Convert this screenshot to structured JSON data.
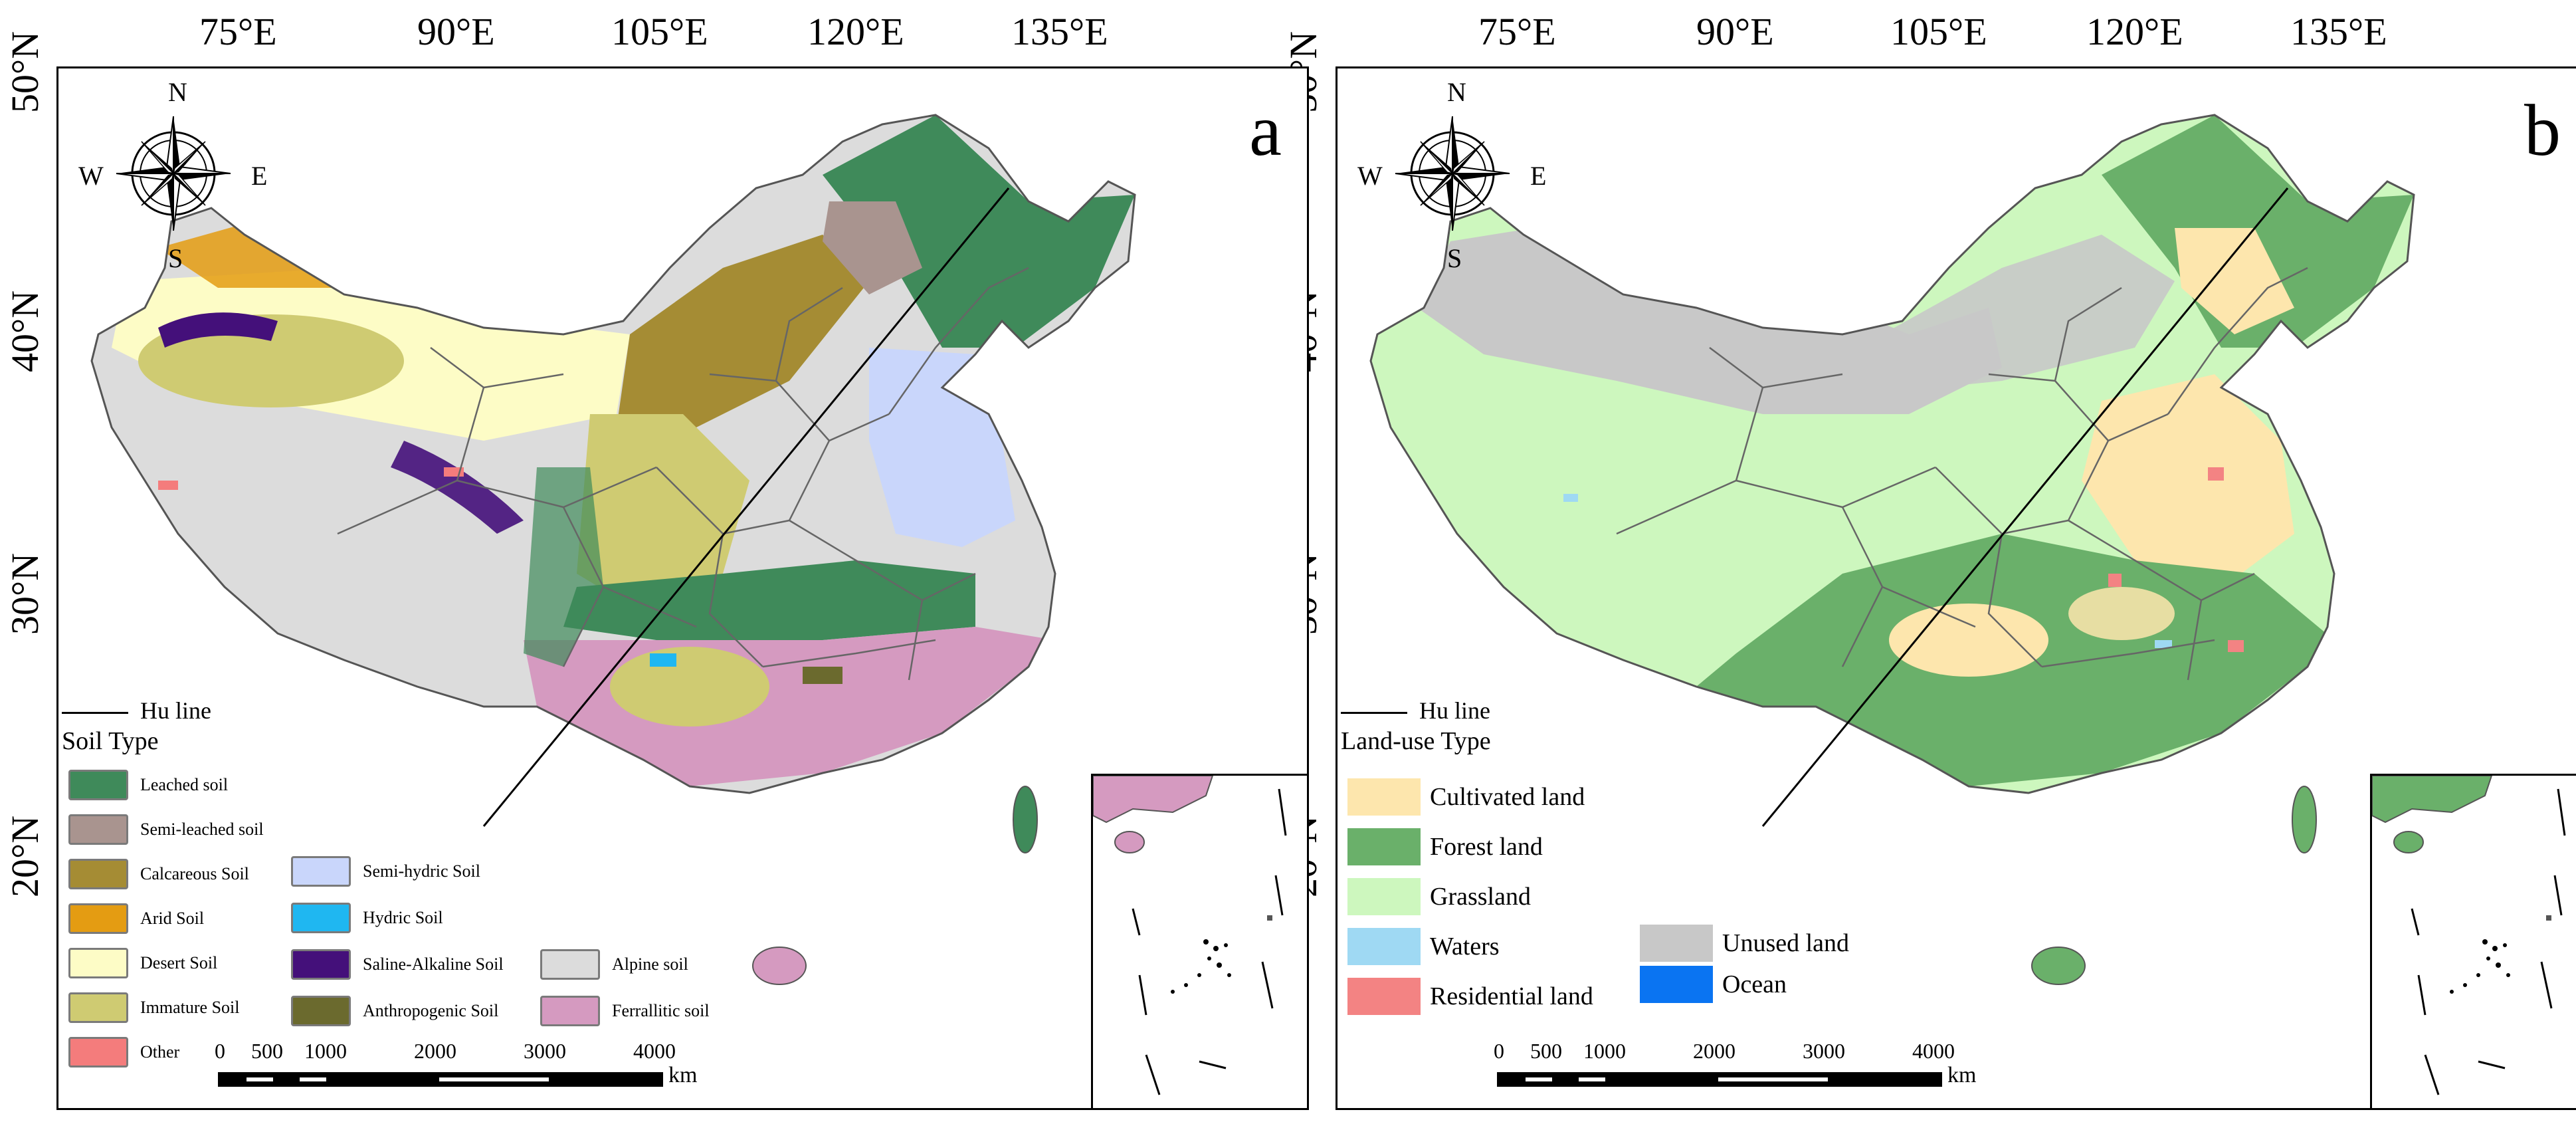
{
  "axes": {
    "lon_labels": [
      "75°E",
      "90°E",
      "105°E",
      "120°E",
      "135°E"
    ],
    "lat_labels": [
      "50°N",
      "40°N",
      "30°N",
      "20°N"
    ]
  },
  "compass": {
    "n": "N",
    "s": "S",
    "e": "E",
    "w": "W"
  },
  "panels": [
    {
      "id": "a",
      "letter": "a",
      "hu_line_label": "Hu line",
      "legend_title": "Soil Type",
      "legend_items": [
        {
          "label": "Leached soil",
          "color": "#3f8a5a"
        },
        {
          "label": "Semi-leached soil",
          "color": "#a9948f"
        },
        {
          "label": "Calcareous Soil",
          "color": "#a58c34"
        },
        {
          "label": "Arid Soil",
          "color": "#e49c12"
        },
        {
          "label": "Desert Soil",
          "color": "#fdfcc6"
        },
        {
          "label": "Immature Soil",
          "color": "#cfcb72"
        },
        {
          "label": "Other",
          "color": "#f47c7c"
        },
        {
          "label": "Semi-hydric Soil",
          "color": "#c9d6fb"
        },
        {
          "label": "Hydric Soil",
          "color": "#1fb7f1"
        },
        {
          "label": "Saline-Alkaline Soil",
          "color": "#44107a"
        },
        {
          "label": "Anthropogenic Soil",
          "color": "#6b6a2e"
        },
        {
          "label": "Alpine soil",
          "color": "#dcdcdc"
        },
        {
          "label": "Ferrallitic soil",
          "color": "#d59ac0"
        }
      ],
      "scale": {
        "ticks": [
          "0",
          "500",
          "1000",
          "2000",
          "3000",
          "4000"
        ],
        "unit": "km"
      }
    },
    {
      "id": "b",
      "letter": "b",
      "hu_line_label": "Hu line",
      "legend_title": "Land-use Type",
      "legend_items": [
        {
          "label": "Cultivated land",
          "color": "#fde6ad"
        },
        {
          "label": "Forest land",
          "color": "#6ab06a"
        },
        {
          "label": "Grassland",
          "color": "#cdf7be"
        },
        {
          "label": "Waters",
          "color": "#9fd9f3"
        },
        {
          "label": "Residential land",
          "color": "#f38383"
        },
        {
          "label": "Unused land",
          "color": "#c8c8c8"
        },
        {
          "label": "Ocean",
          "color": "#0a74f2"
        }
      ],
      "scale": {
        "ticks": [
          "0",
          "500",
          "1000",
          "2000",
          "3000",
          "4000"
        ],
        "unit": "km"
      }
    }
  ]
}
